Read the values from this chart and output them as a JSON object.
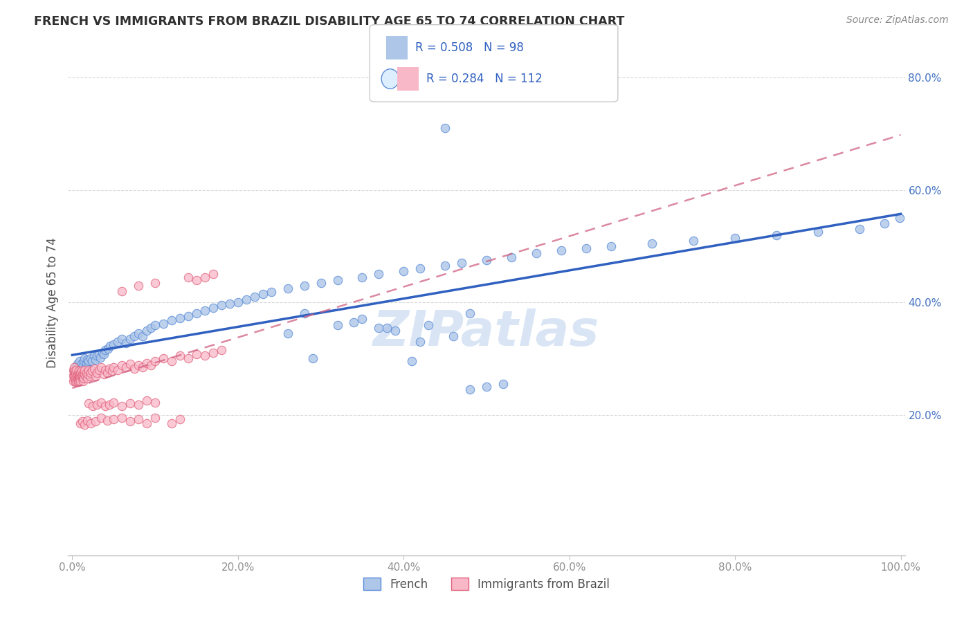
{
  "title": "FRENCH VS IMMIGRANTS FROM BRAZIL DISABILITY AGE 65 TO 74 CORRELATION CHART",
  "source": "Source: ZipAtlas.com",
  "ylabel": "Disability Age 65 to 74",
  "xlabel": "",
  "watermark": "ZIPatlas",
  "series1": {
    "name": "French",
    "R": 0.508,
    "N": 98,
    "color": "#aec6e8",
    "edge_color": "#5b8dd9",
    "line_color": "#3060c0",
    "line_style": "-",
    "x": [
      0.002,
      0.003,
      0.004,
      0.005,
      0.006,
      0.007,
      0.008,
      0.009,
      0.01,
      0.011,
      0.012,
      0.013,
      0.014,
      0.015,
      0.016,
      0.017,
      0.018,
      0.019,
      0.02,
      0.022,
      0.024,
      0.026,
      0.028,
      0.03,
      0.032,
      0.034,
      0.036,
      0.038,
      0.04,
      0.043,
      0.046,
      0.05,
      0.055,
      0.06,
      0.065,
      0.07,
      0.075,
      0.08,
      0.085,
      0.09,
      0.095,
      0.1,
      0.11,
      0.12,
      0.13,
      0.14,
      0.15,
      0.16,
      0.17,
      0.18,
      0.19,
      0.2,
      0.21,
      0.22,
      0.23,
      0.24,
      0.26,
      0.28,
      0.3,
      0.32,
      0.35,
      0.37,
      0.4,
      0.42,
      0.45,
      0.47,
      0.5,
      0.53,
      0.56,
      0.59,
      0.62,
      0.65,
      0.7,
      0.75,
      0.8,
      0.85,
      0.9,
      0.95,
      0.98,
      0.999,
      0.43,
      0.46,
      0.38,
      0.28,
      0.32,
      0.35,
      0.26,
      0.45,
      0.48,
      0.42,
      0.39,
      0.34,
      0.48,
      0.5,
      0.52,
      0.41,
      0.37,
      0.29
    ],
    "y": [
      0.28,
      0.275,
      0.285,
      0.27,
      0.29,
      0.278,
      0.285,
      0.295,
      0.28,
      0.29,
      0.275,
      0.288,
      0.295,
      0.3,
      0.285,
      0.292,
      0.298,
      0.285,
      0.295,
      0.3,
      0.295,
      0.305,
      0.298,
      0.305,
      0.308,
      0.302,
      0.31,
      0.308,
      0.315,
      0.318,
      0.322,
      0.325,
      0.33,
      0.335,
      0.328,
      0.335,
      0.34,
      0.345,
      0.34,
      0.35,
      0.355,
      0.36,
      0.362,
      0.368,
      0.372,
      0.375,
      0.38,
      0.385,
      0.39,
      0.395,
      0.398,
      0.4,
      0.405,
      0.41,
      0.415,
      0.418,
      0.425,
      0.43,
      0.435,
      0.44,
      0.445,
      0.45,
      0.455,
      0.46,
      0.465,
      0.47,
      0.475,
      0.48,
      0.488,
      0.492,
      0.496,
      0.5,
      0.505,
      0.51,
      0.515,
      0.52,
      0.525,
      0.53,
      0.54,
      0.55,
      0.36,
      0.34,
      0.355,
      0.38,
      0.36,
      0.37,
      0.345,
      0.71,
      0.38,
      0.33,
      0.35,
      0.365,
      0.245,
      0.25,
      0.255,
      0.295,
      0.355,
      0.3
    ]
  },
  "series2": {
    "name": "Immigrants from Brazil",
    "R": 0.284,
    "N": 112,
    "color": "#f9b8c8",
    "edge_color": "#e0607a",
    "line_color": "#d06080",
    "line_style": "--",
    "x": [
      0.001,
      0.001,
      0.001,
      0.002,
      0.002,
      0.002,
      0.003,
      0.003,
      0.003,
      0.004,
      0.004,
      0.004,
      0.005,
      0.005,
      0.005,
      0.006,
      0.006,
      0.006,
      0.007,
      0.007,
      0.007,
      0.008,
      0.008,
      0.008,
      0.009,
      0.009,
      0.009,
      0.01,
      0.01,
      0.01,
      0.011,
      0.011,
      0.012,
      0.012,
      0.013,
      0.013,
      0.014,
      0.014,
      0.015,
      0.015,
      0.016,
      0.017,
      0.018,
      0.019,
      0.02,
      0.021,
      0.022,
      0.024,
      0.026,
      0.028,
      0.03,
      0.032,
      0.035,
      0.038,
      0.04,
      0.042,
      0.045,
      0.048,
      0.05,
      0.055,
      0.06,
      0.065,
      0.07,
      0.075,
      0.08,
      0.085,
      0.09,
      0.095,
      0.1,
      0.11,
      0.12,
      0.13,
      0.14,
      0.15,
      0.16,
      0.17,
      0.18,
      0.02,
      0.025,
      0.03,
      0.035,
      0.04,
      0.045,
      0.05,
      0.06,
      0.07,
      0.08,
      0.09,
      0.1,
      0.01,
      0.012,
      0.015,
      0.018,
      0.022,
      0.028,
      0.035,
      0.042,
      0.05,
      0.06,
      0.07,
      0.08,
      0.09,
      0.1,
      0.12,
      0.13,
      0.14,
      0.15,
      0.16,
      0.17,
      0.06,
      0.08,
      0.1
    ],
    "y": [
      0.27,
      0.28,
      0.26,
      0.275,
      0.265,
      0.285,
      0.272,
      0.268,
      0.278,
      0.265,
      0.275,
      0.258,
      0.27,
      0.26,
      0.28,
      0.268,
      0.262,
      0.272,
      0.265,
      0.275,
      0.258,
      0.268,
      0.278,
      0.26,
      0.272,
      0.265,
      0.27,
      0.268,
      0.275,
      0.26,
      0.27,
      0.278,
      0.265,
      0.272,
      0.268,
      0.26,
      0.275,
      0.265,
      0.272,
      0.28,
      0.268,
      0.275,
      0.265,
      0.272,
      0.28,
      0.268,
      0.275,
      0.278,
      0.282,
      0.268,
      0.275,
      0.28,
      0.285,
      0.272,
      0.28,
      0.275,
      0.282,
      0.278,
      0.285,
      0.28,
      0.288,
      0.285,
      0.29,
      0.282,
      0.288,
      0.285,
      0.292,
      0.288,
      0.295,
      0.3,
      0.295,
      0.305,
      0.3,
      0.308,
      0.305,
      0.31,
      0.315,
      0.22,
      0.215,
      0.218,
      0.222,
      0.215,
      0.218,
      0.222,
      0.215,
      0.22,
      0.218,
      0.225,
      0.222,
      0.185,
      0.188,
      0.182,
      0.19,
      0.185,
      0.188,
      0.195,
      0.19,
      0.192,
      0.195,
      0.188,
      0.192,
      0.185,
      0.195,
      0.185,
      0.192,
      0.445,
      0.44,
      0.445,
      0.45,
      0.42,
      0.43,
      0.435
    ]
  },
  "xlim": [
    -0.005,
    1.005
  ],
  "ylim": [
    -0.05,
    0.85
  ],
  "xticks": [
    0.0,
    0.2,
    0.4,
    0.6,
    0.8,
    1.0
  ],
  "xticklabels": [
    "0.0%",
    "20.0%",
    "40.0%",
    "60.0%",
    "80.0%",
    "100.0%"
  ],
  "yticks_right": [
    0.2,
    0.4,
    0.6,
    0.8
  ],
  "yticklabels_right": [
    "20.0%",
    "40.0%",
    "60.0%",
    "80.0%"
  ],
  "grid_color": "#d8d8d8",
  "grid_style": "--",
  "background_color": "#ffffff",
  "title_color": "#303030",
  "axis_label_color": "#505050",
  "tick_color": "#909090",
  "right_tick_color": "#4070c0",
  "legend_border_color": "#c8c8c8",
  "legend_text_color": "#3060c0",
  "watermark_color": "#c0d4ee"
}
